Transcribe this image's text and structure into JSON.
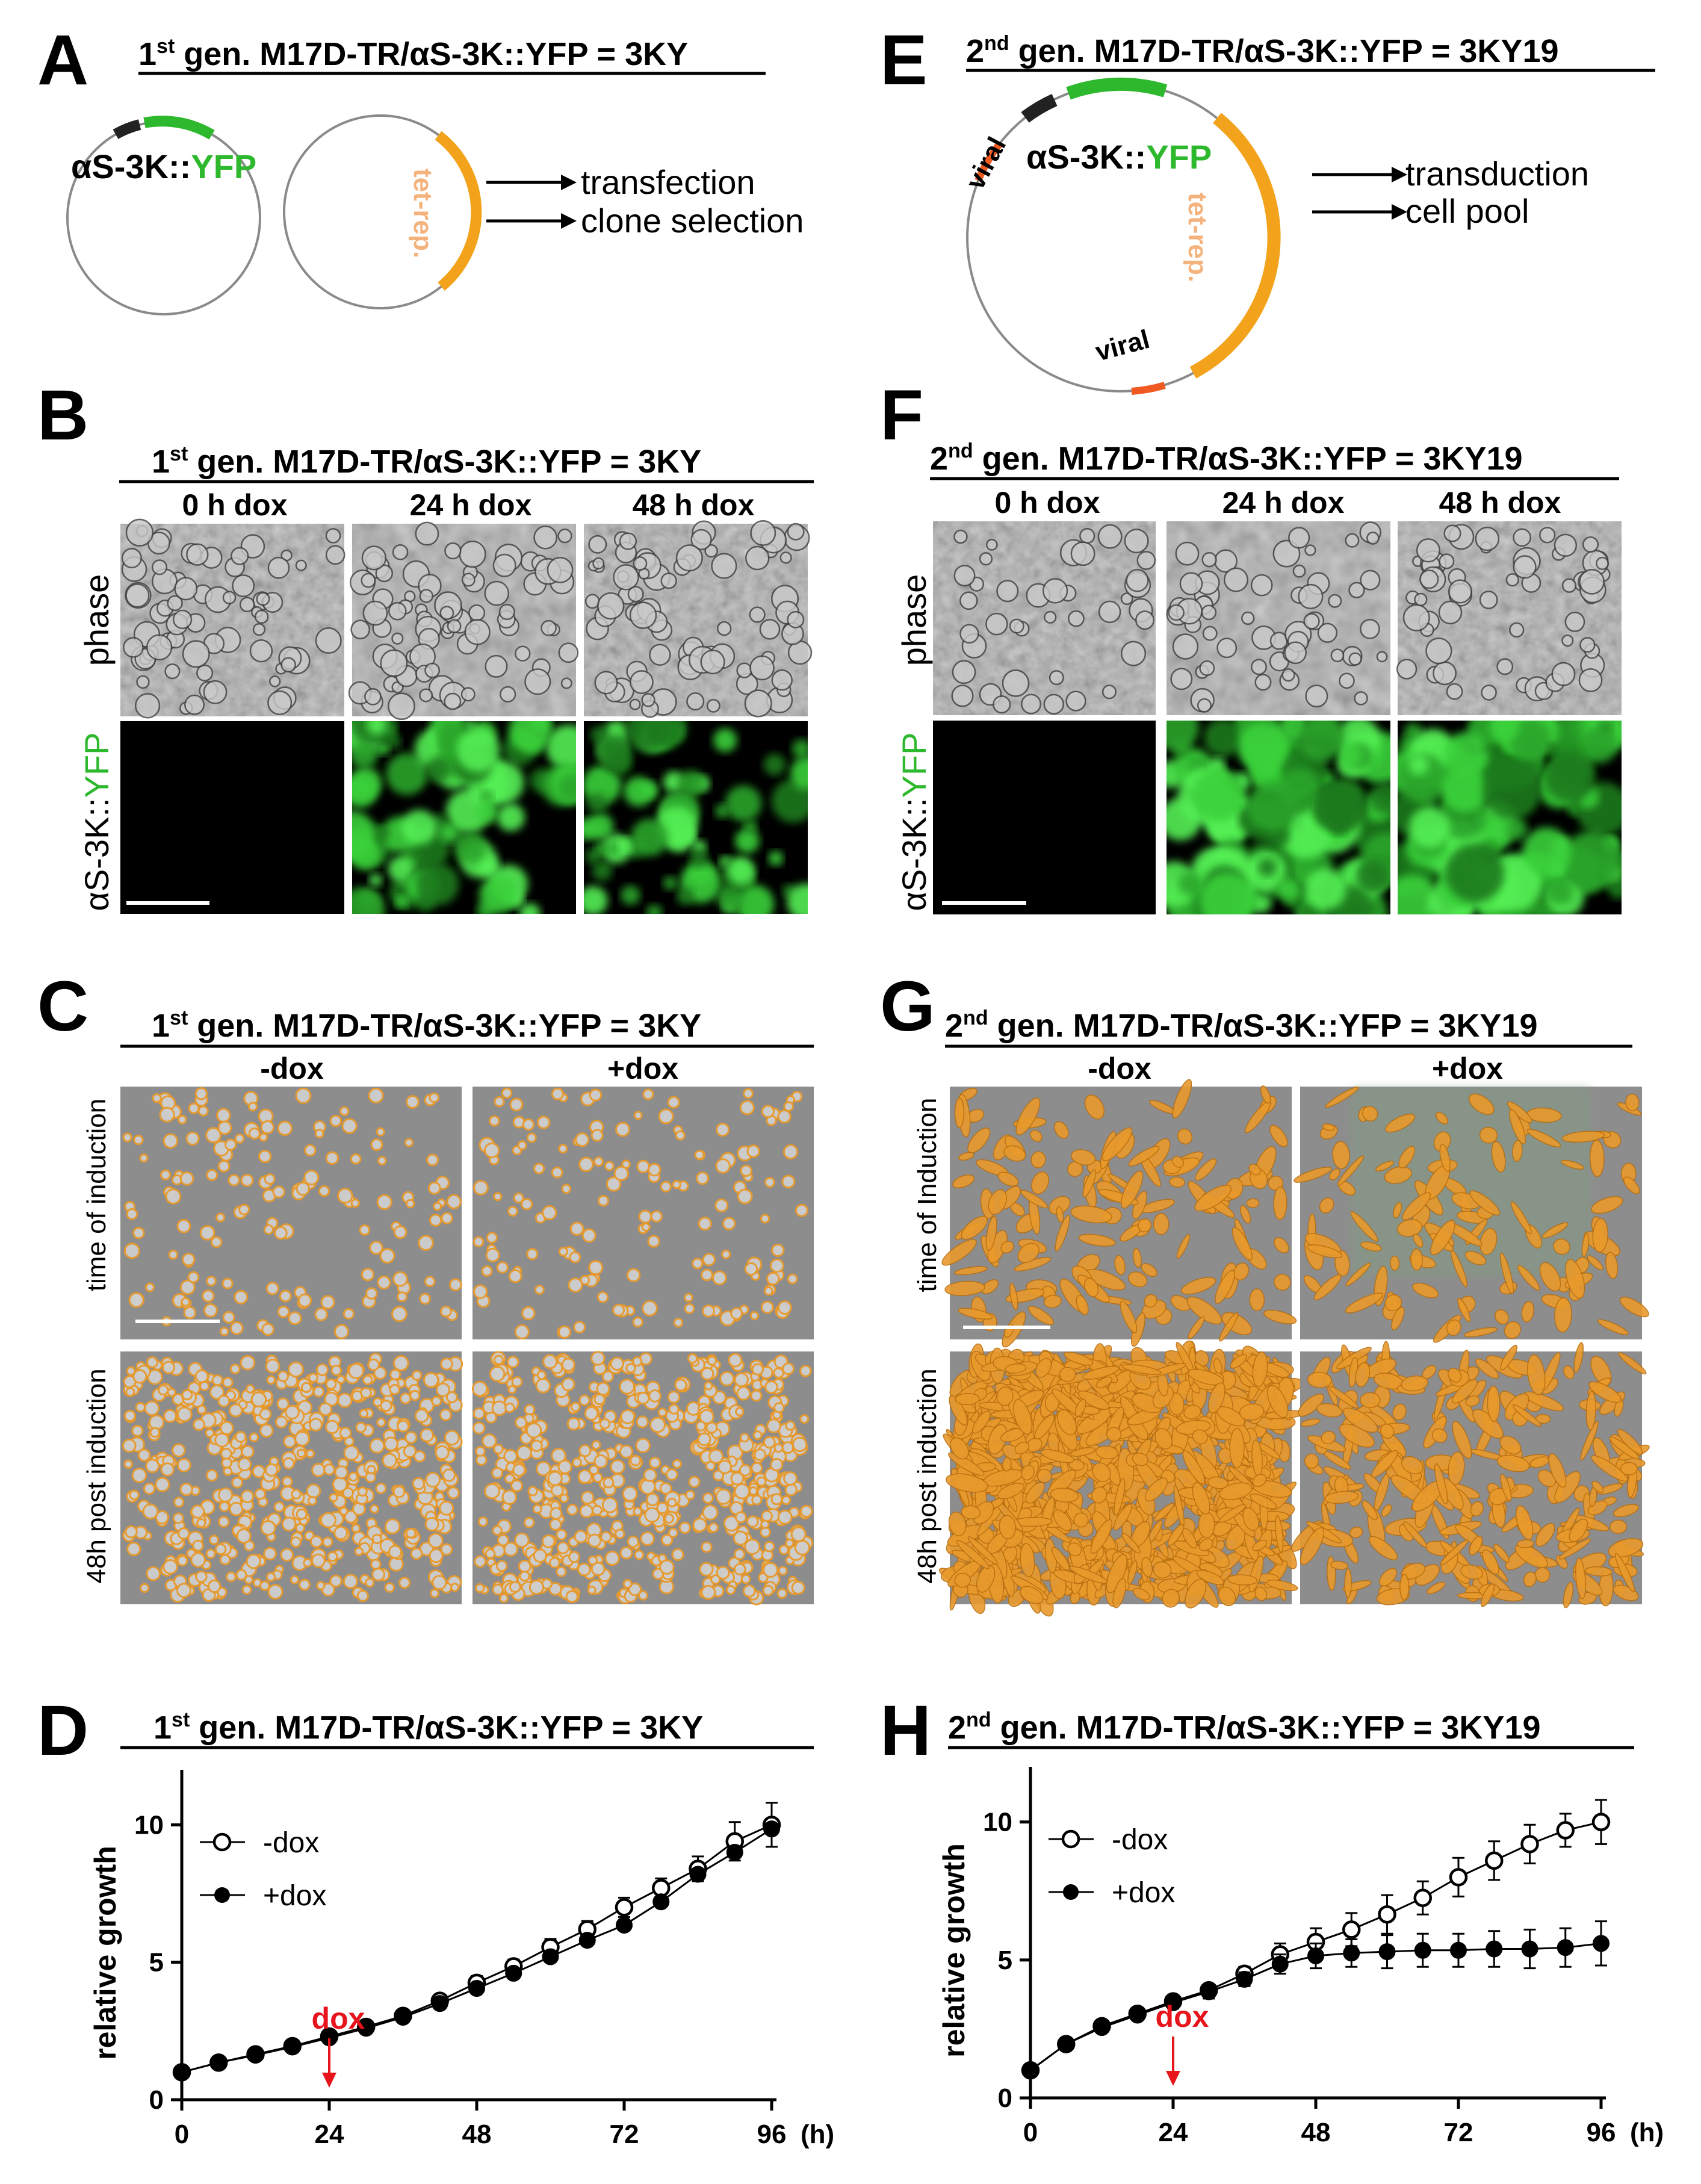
{
  "colors": {
    "green": "#2db82d",
    "orange": "#f2a31b",
    "salmon": "#f4b27c",
    "red_orange": "#ef5a23",
    "dark": "#222222",
    "dox_red": "#e8141b",
    "overlay_orange": "#e89a2c",
    "phase_gray": "#a9a9a9",
    "analysis_gray": "#8d8d8d"
  },
  "panelA": {
    "label": "A",
    "title_sup": "st",
    "title_pre": "1",
    "title_post": " gen. M17D-TR/αS-3K::YFP = 3KY",
    "plasmid_label_black": "αS-3K::",
    "plasmid_label_green": "YFP",
    "tetrep_label": "tet-rep.",
    "arrows": [
      "transfection",
      "clone selection"
    ]
  },
  "panelE": {
    "label": "E",
    "title_sup": "nd",
    "title_pre": "2",
    "title_post": " gen. M17D-TR/αS-3K::YFP = 3KY19",
    "plasmid_label_black": "αS-3K::",
    "plasmid_label_green": "YFP",
    "tetrep_label": "tet-rep.",
    "viral_label_1": "viral",
    "viral_label_2": "viral",
    "arrows": [
      "transduction",
      "cell pool"
    ]
  },
  "panelB": {
    "label": "B",
    "title_sup": "st",
    "title_pre": "1",
    "title_post": " gen. M17D-TR/αS-3K::YFP = 3KY",
    "columns": [
      "0 h dox",
      "24 h dox",
      "48 h dox"
    ],
    "row_phase": "phase",
    "row_fluor_black": "αS-3K::",
    "row_fluor_green": "YFP"
  },
  "panelF": {
    "label": "F",
    "title_sup": "nd",
    "title_pre": "2",
    "title_post": " gen. M17D-TR/αS-3K::YFP = 3KY19",
    "columns": [
      "0 h dox",
      "24 h dox",
      "48 h dox"
    ],
    "row_phase": "phase",
    "row_fluor_black": "αS-3K::",
    "row_fluor_green": "YFP"
  },
  "panelC": {
    "label": "C",
    "title_sup": "st",
    "title_pre": "1",
    "title_post": " gen. M17D-TR/αS-3K::YFP = 3KY",
    "columns": [
      "-dox",
      "+dox"
    ],
    "rows": [
      "time of induction",
      "48h post induction"
    ]
  },
  "panelG": {
    "label": "G",
    "title_sup": "nd",
    "title_pre": "2",
    "title_post": " gen. M17D-TR/αS-3K::YFP = 3KY19",
    "columns": [
      "-dox",
      "+dox"
    ],
    "rows": [
      "time of Induction",
      "48h post induction"
    ]
  },
  "panelD": {
    "label": "D",
    "title_sup": "st",
    "title_pre": "1",
    "title_post": " gen. M17D-TR/αS-3K::YFP = 3KY"
  },
  "panelH": {
    "label": "H",
    "title_sup": "nd",
    "title_pre": "2",
    "title_post": " gen. M17D-TR/αS-3K::YFP = 3KY19"
  },
  "chart_data": [
    {
      "panel": "D",
      "type": "line",
      "title": "1st gen. M17D-TR/αS-3K::YFP = 3KY",
      "xlabel": "(h)",
      "ylabel": "relative growth",
      "xlim": [
        0,
        96
      ],
      "ylim": [
        0,
        12
      ],
      "xticks": [
        0,
        24,
        48,
        72,
        96
      ],
      "yticks": [
        0,
        5,
        10
      ],
      "legend_position": "top-left",
      "annotation": {
        "text": "dox",
        "x": 24
      },
      "series": [
        {
          "name": "-dox",
          "marker": "open-circle",
          "x": [
            0,
            6,
            12,
            18,
            24,
            30,
            36,
            42,
            48,
            54,
            60,
            66,
            72,
            78,
            84,
            90,
            96
          ],
          "y": [
            1.0,
            1.35,
            1.65,
            1.95,
            2.3,
            2.65,
            3.05,
            3.6,
            4.25,
            4.85,
            5.55,
            6.2,
            7.0,
            7.7,
            8.4,
            9.4,
            10.0
          ],
          "err": [
            0.05,
            0.08,
            0.08,
            0.1,
            0.1,
            0.1,
            0.12,
            0.2,
            0.25,
            0.25,
            0.3,
            0.3,
            0.35,
            0.35,
            0.45,
            0.7,
            0.8
          ]
        },
        {
          "name": "+dox",
          "marker": "filled-circle",
          "x": [
            0,
            6,
            12,
            18,
            24,
            30,
            36,
            42,
            48,
            54,
            60,
            66,
            72,
            78,
            84,
            90,
            96
          ],
          "y": [
            1.0,
            1.35,
            1.62,
            1.92,
            2.25,
            2.6,
            3.0,
            3.5,
            4.05,
            4.6,
            5.2,
            5.8,
            6.35,
            7.2,
            8.2,
            9.0,
            9.85
          ]
        },
        {
          "name": "",
          "marker": "none",
          "x": [],
          "y": []
        }
      ]
    },
    {
      "panel": "H",
      "type": "line",
      "title": "2nd gen. M17D-TR/αS-3K::YFP = 3KY19",
      "xlabel": "(h)",
      "ylabel": "relative growth",
      "xlim": [
        0,
        96
      ],
      "ylim": [
        0,
        12
      ],
      "xticks": [
        0,
        24,
        48,
        72,
        96
      ],
      "yticks": [
        0,
        5,
        10
      ],
      "legend_position": "top-left",
      "annotation": {
        "text": "dox",
        "x": 24
      },
      "series": [
        {
          "name": "-dox",
          "marker": "open-circle",
          "x": [
            0,
            6,
            12,
            18,
            24,
            30,
            36,
            42,
            48,
            54,
            60,
            66,
            72,
            78,
            84,
            90,
            96
          ],
          "y": [
            1.0,
            1.95,
            2.6,
            3.05,
            3.5,
            3.9,
            4.5,
            5.2,
            5.65,
            6.1,
            6.65,
            7.25,
            8.0,
            8.6,
            9.2,
            9.7,
            10.0
          ],
          "err": [
            0.05,
            0.1,
            0.12,
            0.15,
            0.2,
            0.2,
            0.25,
            0.4,
            0.5,
            0.6,
            0.7,
            0.6,
            0.7,
            0.7,
            0.7,
            0.6,
            0.8
          ]
        },
        {
          "name": "+dox",
          "marker": "filled-circle",
          "x": [
            0,
            6,
            12,
            18,
            24,
            30,
            36,
            42,
            48,
            54,
            60,
            66,
            72,
            78,
            84,
            90,
            96
          ],
          "y": [
            1.0,
            1.95,
            2.55,
            3.0,
            3.45,
            3.85,
            4.3,
            4.85,
            5.15,
            5.25,
            5.3,
            5.35,
            5.35,
            5.4,
            5.4,
            5.45,
            5.6
          ],
          "err": [
            0.05,
            0.1,
            0.12,
            0.15,
            0.2,
            0.25,
            0.25,
            0.35,
            0.45,
            0.5,
            0.6,
            0.6,
            0.6,
            0.65,
            0.7,
            0.7,
            0.8
          ]
        }
      ]
    }
  ]
}
